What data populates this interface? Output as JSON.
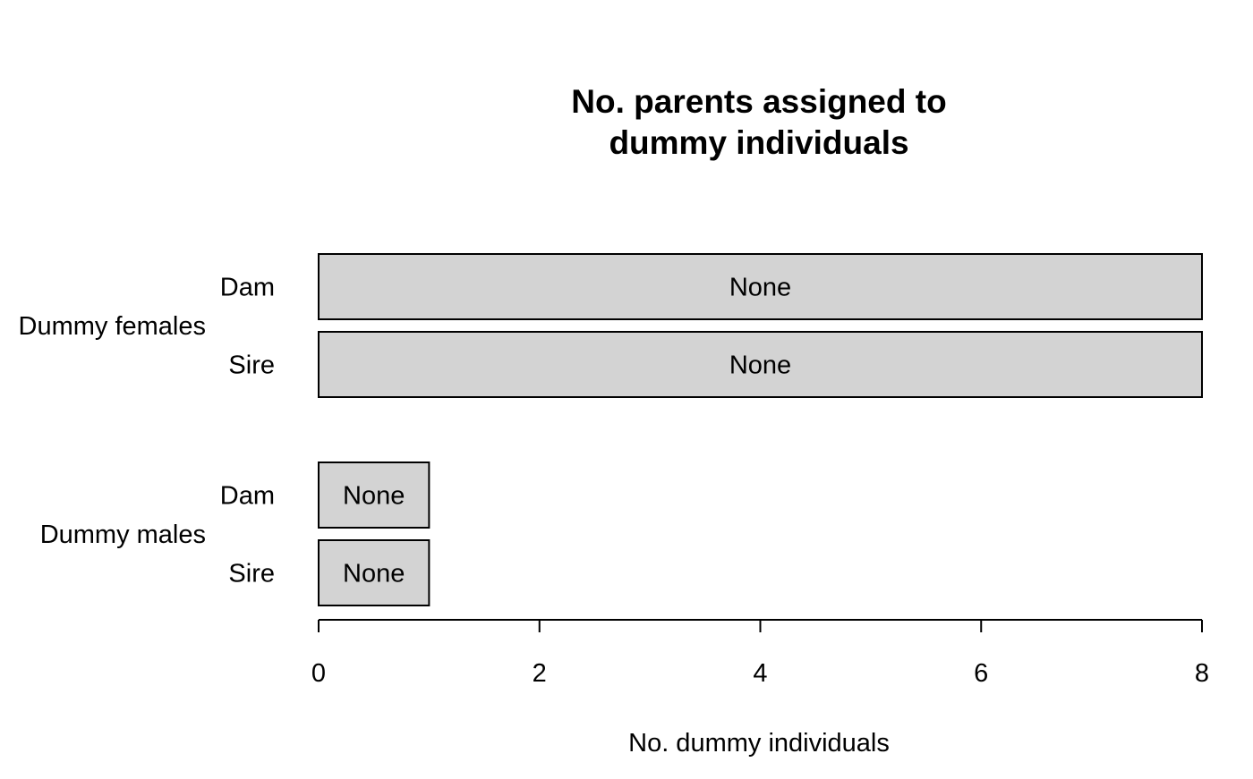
{
  "chart_data": {
    "type": "bar",
    "orientation": "horizontal",
    "title": [
      "No. parents assigned to",
      "dummy individuals"
    ],
    "xlabel": "No. dummy individuals",
    "ylabel": "",
    "xlim": [
      0,
      8
    ],
    "x_ticks": [
      "0",
      "2",
      "4",
      "6",
      "8"
    ],
    "grid": false,
    "legend": "none",
    "groups": [
      {
        "name": "Dummy females",
        "bars": [
          {
            "category": "Dam",
            "value": 8,
            "label": "None"
          },
          {
            "category": "Sire",
            "value": 8,
            "label": "None"
          }
        ]
      },
      {
        "name": "Dummy males",
        "bars": [
          {
            "category": "Dam",
            "value": 1,
            "label": "None"
          },
          {
            "category": "Sire",
            "value": 1,
            "label": "None"
          }
        ]
      }
    ],
    "colors": {
      "bar_fill": "#d3d3d3",
      "bar_stroke": "#000000",
      "text": "#000000"
    }
  }
}
